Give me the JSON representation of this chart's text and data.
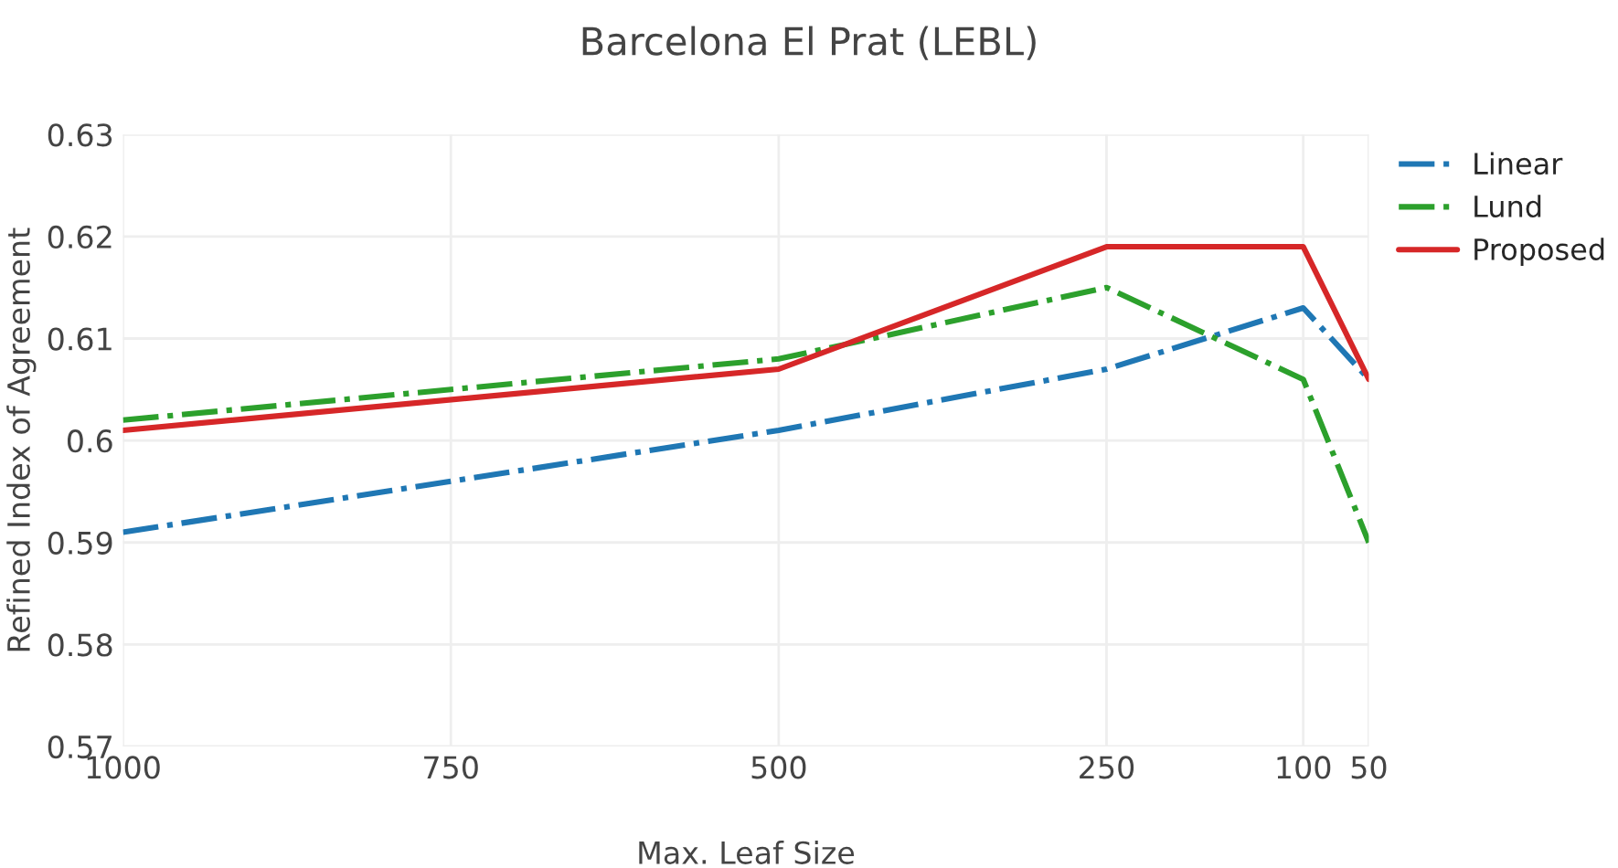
{
  "chart_data": {
    "type": "line",
    "title": "Barcelona El Prat (LEBL)",
    "xlabel": "Max. Leaf Size",
    "ylabel": "Refined Index of Agreement",
    "x": [
      1000,
      500,
      250,
      100,
      50
    ],
    "series": [
      {
        "name": "Linear",
        "color": "#1f77b4",
        "line_style": "dashdot",
        "values": [
          0.591,
          0.601,
          0.607,
          0.613,
          0.606
        ]
      },
      {
        "name": "Lund",
        "color": "#2ca02c",
        "line_style": "dashdot",
        "values": [
          0.602,
          0.608,
          0.615,
          0.606,
          0.59
        ]
      },
      {
        "name": "Proposed",
        "color": "#d62728",
        "line_style": "solid",
        "values": [
          0.601,
          0.607,
          0.619,
          0.619,
          0.606
        ]
      }
    ],
    "xlim": [
      1000,
      50
    ],
    "xticks": [
      1000,
      750,
      500,
      250,
      100,
      50
    ],
    "ylim": [
      0.57,
      0.63
    ],
    "yticks": [
      0.57,
      0.58,
      0.59,
      0.6,
      0.61,
      0.62,
      0.63
    ],
    "grid": true,
    "legend": "top right",
    "marker": "none"
  }
}
